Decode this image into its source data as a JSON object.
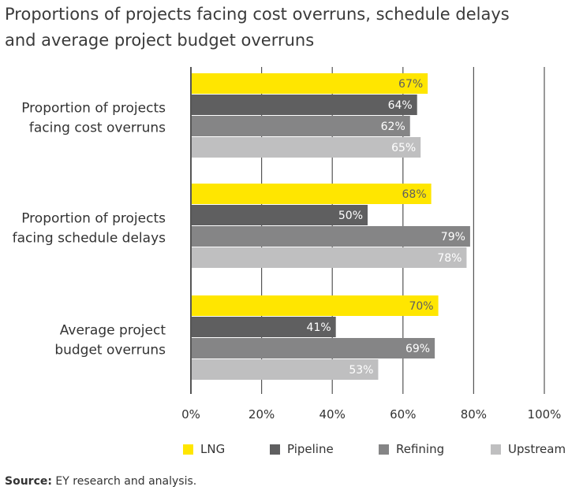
{
  "title_lines": [
    "Proportions of projects facing cost overruns, schedule delays",
    "and average project budget overruns"
  ],
  "source": {
    "label": "Source:",
    "text": "EY research and analysis."
  },
  "colors": {
    "LNG": "#ffe600",
    "Pipeline": "#5f5f60",
    "Refining": "#858586",
    "Upstream": "#bfbfc0",
    "grid": "#555555",
    "value_text_dark": "#5f5f60",
    "value_text_light": "#ffffff"
  },
  "chart_data": {
    "type": "bar",
    "orientation": "horizontal",
    "xlim": [
      0,
      100
    ],
    "xticks": [
      "0%",
      "20%",
      "40%",
      "60%",
      "80%",
      "100%"
    ],
    "xtick_values": [
      0,
      20,
      40,
      60,
      80,
      100
    ],
    "categories": [
      {
        "lines": [
          "Proportion of projects",
          "facing cost overruns"
        ]
      },
      {
        "lines": [
          "Proportion of projects",
          "facing schedule delays"
        ]
      },
      {
        "lines": [
          "Average project",
          "budget overruns"
        ]
      }
    ],
    "series": [
      {
        "name": "LNG",
        "values": [
          67,
          68,
          70
        ],
        "labels": [
          "67%",
          "68%",
          "70%"
        ]
      },
      {
        "name": "Pipeline",
        "values": [
          64,
          50,
          41
        ],
        "labels": [
          "64%",
          "50%",
          "41%"
        ]
      },
      {
        "name": "Refining",
        "values": [
          62,
          79,
          69
        ],
        "labels": [
          "62%",
          "79%",
          "69%"
        ]
      },
      {
        "name": "Upstream",
        "values": [
          65,
          78,
          53
        ],
        "labels": [
          "65%",
          "78%",
          "53%"
        ]
      }
    ],
    "legend": [
      "LNG",
      "Pipeline",
      "Refining",
      "Upstream"
    ],
    "legend_position": "bottom"
  }
}
